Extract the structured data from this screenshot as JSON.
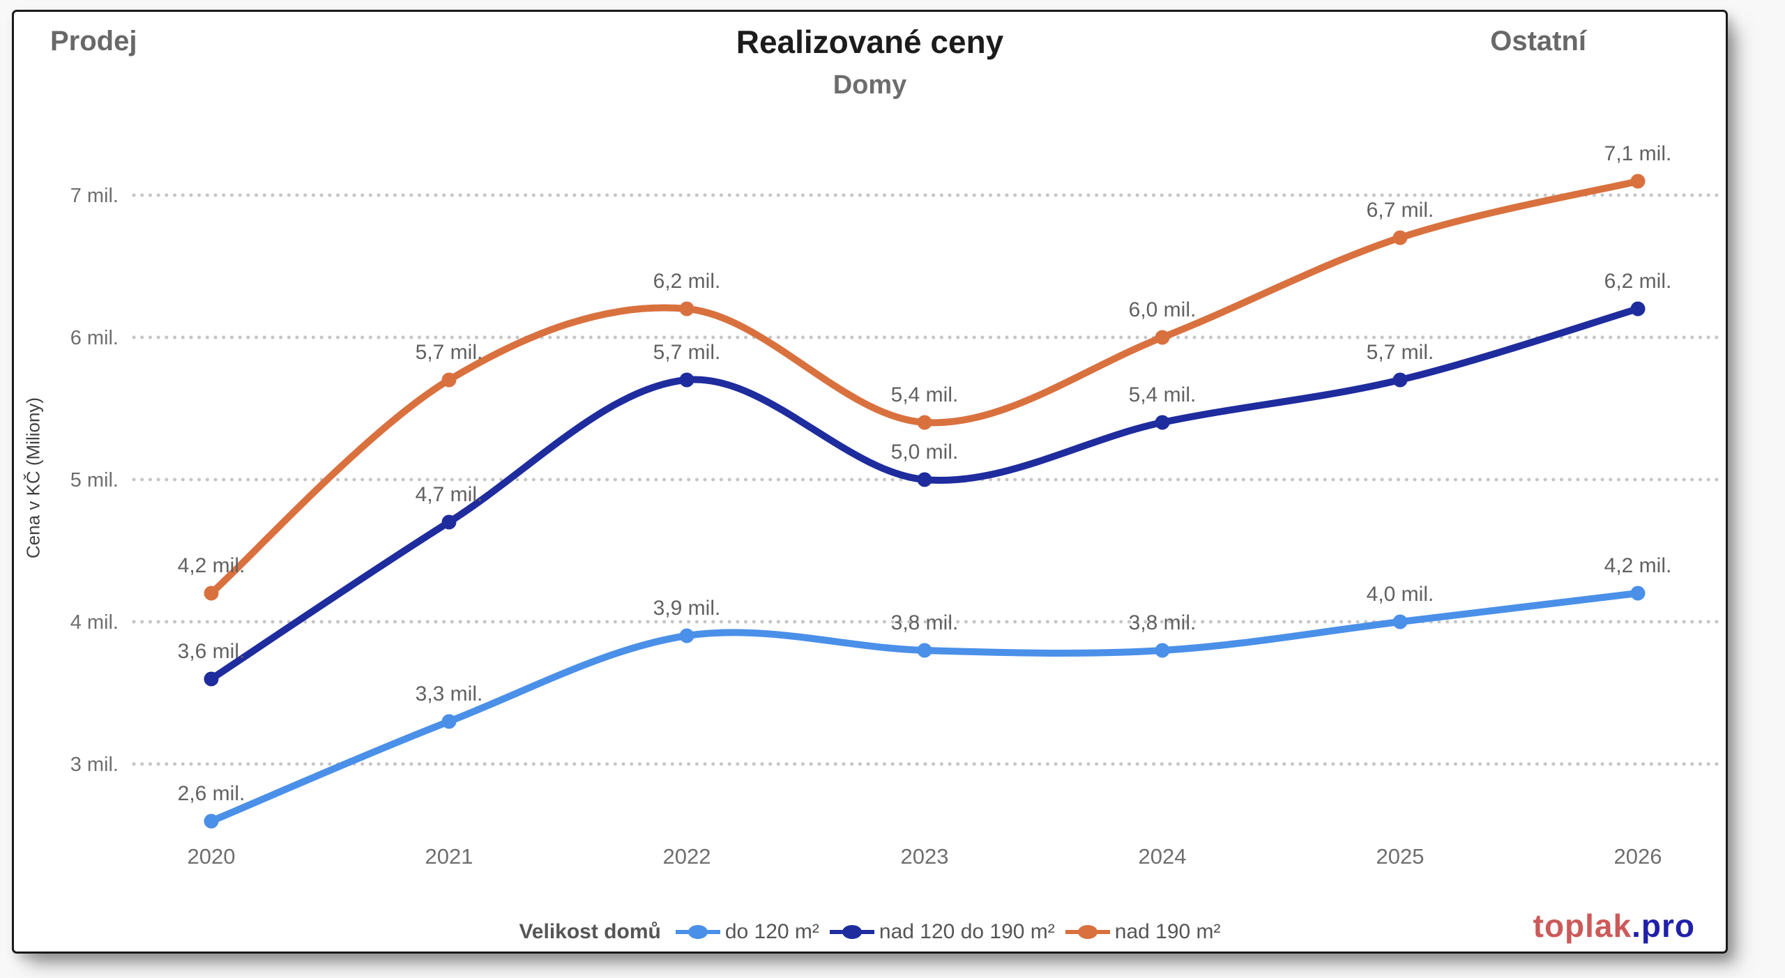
{
  "frame": {
    "top_left_label": "Prodej",
    "top_right_label": "Ostatní"
  },
  "chart_data": {
    "type": "line",
    "title": "Realizované ceny",
    "subtitle": "Domy",
    "xlabel": "",
    "ylabel": "Cena v KČ (Miliony)",
    "categories": [
      "2020",
      "2021",
      "2022",
      "2023",
      "2024",
      "2025",
      "2026"
    ],
    "y_axis": {
      "min": 3,
      "max": 7,
      "tick_step": 1,
      "tick_values": [
        7,
        6,
        5,
        4,
        3
      ],
      "tick_labels": [
        "7 mil.",
        "6 mil.",
        "5 mil.",
        "4 mil.",
        "3 mil."
      ],
      "grid": "horizontal-dotted"
    },
    "legend": {
      "title": "Velikost domů",
      "position": "bottom"
    },
    "series": [
      {
        "name": "do 120 m²",
        "color": "#4a90e8",
        "values": [
          2.6,
          3.3,
          3.9,
          3.8,
          3.8,
          4.0,
          4.2
        ],
        "labels": [
          "2,6 mil.",
          "3,3 mil.",
          "3,9 mil.",
          "3,8 mil.",
          "3,8 mil.",
          "4,0 mil.",
          "4,2 mil."
        ]
      },
      {
        "name": "nad 120 do 190 m²",
        "color": "#1e2c9e",
        "values": [
          3.6,
          4.7,
          5.7,
          5.0,
          5.4,
          5.7,
          6.2
        ],
        "labels": [
          "3,6 mil.",
          "4,7 mil.",
          "5,7 mil.",
          "5,0 mil.",
          "5,4 mil.",
          "5,7 mil.",
          "6,2 mil."
        ]
      },
      {
        "name": "nad 190 m²",
        "color": "#d9713f",
        "values": [
          4.2,
          5.7,
          6.2,
          5.4,
          6.0,
          6.7,
          7.1
        ],
        "labels": [
          "4,2 mil.",
          "5,7 mil.",
          "6,2 mil.",
          "5,4 mil.",
          "6,0 mil.",
          "6,7 mil.",
          "7,1 mil."
        ]
      }
    ],
    "styles": {
      "grid_color": "#c6c6c6",
      "tick_label_color": "#6e6e6e",
      "year_label_color": "#6e6e6e",
      "data_label_color": "#616161"
    }
  },
  "footer": {
    "brand_primary": "toplak",
    "brand_primary_color": "#cc5a5a",
    "brand_secondary": ".pro",
    "brand_secondary_color": "#2020a8"
  }
}
